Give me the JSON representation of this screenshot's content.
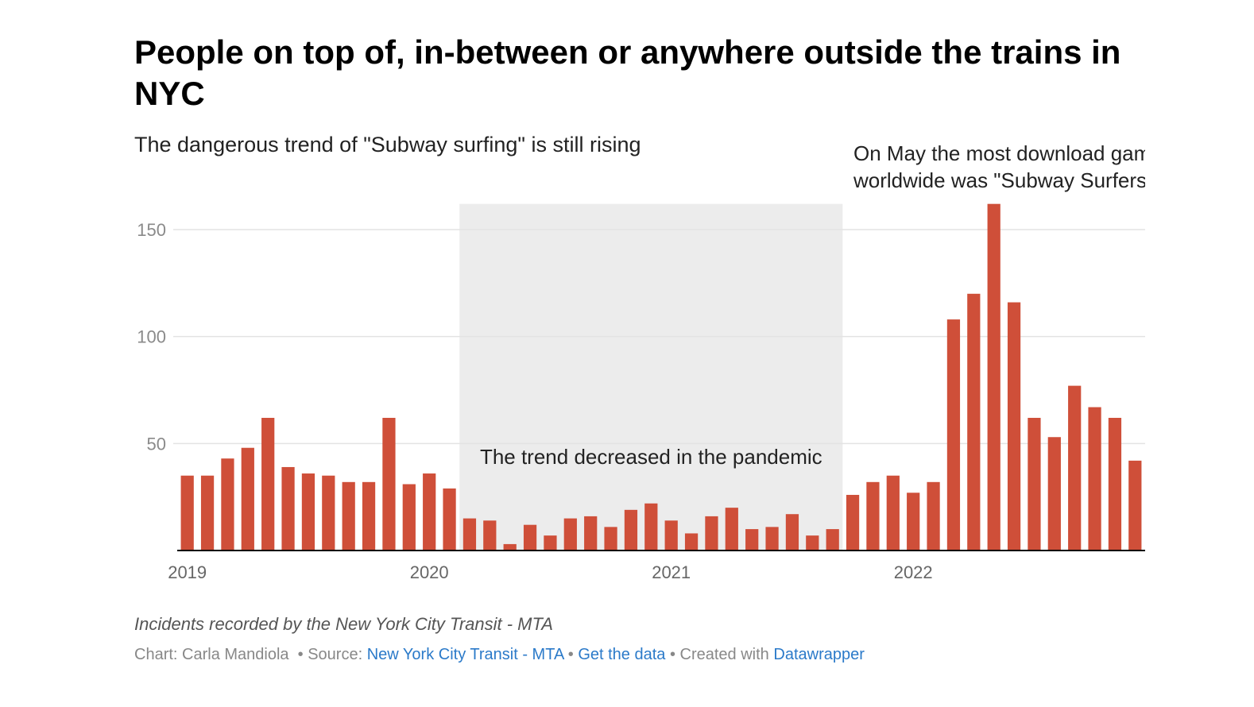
{
  "header": {
    "title": "People on top of, in-between or anywhere outside the trains in NYC",
    "subtitle": "The dangerous trend of \"Subway surfing\" is still rising"
  },
  "notes": "Incidents recorded by the New York City Transit - MTA",
  "footer": {
    "chart_by": "Chart: Carla Mandiola",
    "sep1": "• Source:",
    "source": "New York City Transit - MTA",
    "sep2": "•",
    "get_data": "Get the data",
    "sep3": "• Created with",
    "created_with": "Datawrapper"
  },
  "colors": {
    "bar": "#cf4f39",
    "highlight_band": "#ececec",
    "grid": "#e3e3e3",
    "axis": "#000000",
    "tick_label": "#8a8a8a",
    "link": "#2b7ac9"
  },
  "chart_data": {
    "type": "bar",
    "title": "People on top of, in-between or anywhere outside the trains in NYC",
    "subtitle": "The dangerous trend of \"Subway surfing\" is still rising",
    "xlabel": "",
    "ylabel": "",
    "x_tick_labels": [
      "2019",
      "2020",
      "2021",
      "2022"
    ],
    "y_ticks": [
      50,
      100,
      150
    ],
    "ylim": [
      0,
      162
    ],
    "grid": true,
    "categories": [
      "2019-01",
      "2019-02",
      "2019-03",
      "2019-04",
      "2019-05",
      "2019-06",
      "2019-07",
      "2019-08",
      "2019-09",
      "2019-10",
      "2019-11",
      "2019-12",
      "2020-01",
      "2020-02",
      "2020-03",
      "2020-04",
      "2020-05",
      "2020-06",
      "2020-07",
      "2020-08",
      "2020-09",
      "2020-10",
      "2020-11",
      "2020-12",
      "2021-01",
      "2021-02",
      "2021-03",
      "2021-04",
      "2021-05",
      "2021-06",
      "2021-07",
      "2021-08",
      "2021-09",
      "2021-10",
      "2021-11",
      "2021-12",
      "2022-01",
      "2022-02",
      "2022-03",
      "2022-04",
      "2022-05",
      "2022-06",
      "2022-07",
      "2022-08",
      "2022-09",
      "2022-10",
      "2022-11",
      "2022-12"
    ],
    "values": [
      35,
      35,
      43,
      48,
      62,
      39,
      36,
      35,
      32,
      32,
      62,
      31,
      36,
      29,
      15,
      14,
      3,
      12,
      7,
      15,
      16,
      11,
      19,
      22,
      14,
      8,
      16,
      20,
      10,
      11,
      17,
      7,
      10,
      26,
      32,
      35,
      27,
      32,
      108,
      120,
      162,
      116,
      62,
      53,
      77,
      67,
      62,
      42
    ],
    "highlight_range": {
      "from": "2020-03",
      "to": "2021-10",
      "label": "The trend decreased in the pandemic"
    },
    "annotations": [
      {
        "category": "2022-05",
        "lines": [
          "On May the most download gam",
          "worldwide was \"Subway Surfers'"
        ]
      }
    ]
  }
}
